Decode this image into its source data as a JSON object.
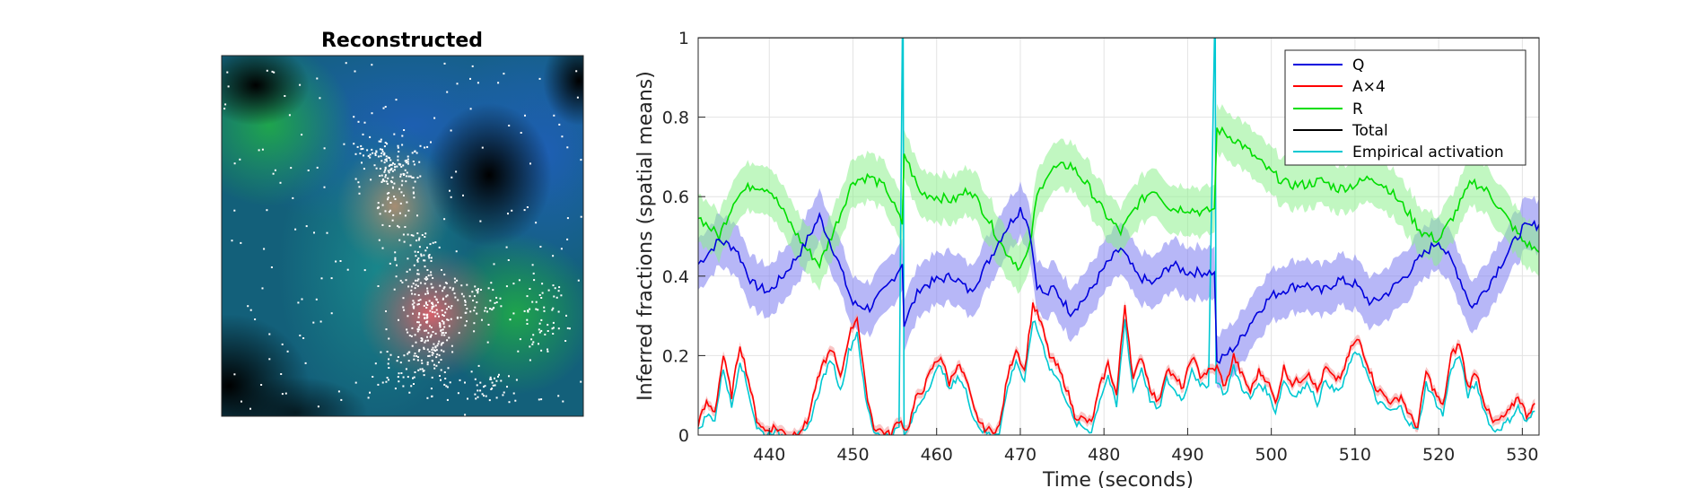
{
  "image_panel": {
    "title": "Reconstructed"
  },
  "chart_data": {
    "type": "line",
    "xlabel": "Time (seconds)",
    "ylabel": "Inferred fractions (spatial means)",
    "xlim": [
      431.5,
      532
    ],
    "ylim": [
      0,
      1
    ],
    "xticks": [
      440,
      450,
      460,
      470,
      480,
      490,
      500,
      510,
      520,
      530
    ],
    "yticks": [
      0,
      0.2,
      0.4,
      0.6,
      0.8,
      1
    ],
    "grid": true,
    "legend_position": "top-right",
    "series": [
      {
        "name": "Q",
        "color": "#0000dd",
        "band_color": "#7b7bf0",
        "x": [
          431.5,
          434,
          436,
          438,
          440,
          442,
          444,
          446,
          448,
          450,
          452,
          454,
          455.9,
          456.1,
          458,
          460,
          462,
          464,
          466,
          468,
          470,
          471,
          472,
          473,
          474,
          476,
          478,
          480,
          482,
          484,
          486,
          488,
          490,
          492,
          493.2,
          493.5,
          496,
          498,
          500,
          502,
          504,
          506,
          508,
          510,
          512,
          514,
          516,
          518,
          520,
          522,
          524,
          526,
          528,
          530,
          532
        ],
        "y": [
          0.43,
          0.49,
          0.47,
          0.38,
          0.36,
          0.41,
          0.47,
          0.55,
          0.45,
          0.33,
          0.32,
          0.37,
          0.43,
          0.28,
          0.37,
          0.39,
          0.4,
          0.36,
          0.43,
          0.51,
          0.57,
          0.53,
          0.38,
          0.35,
          0.37,
          0.31,
          0.35,
          0.42,
          0.47,
          0.4,
          0.38,
          0.43,
          0.41,
          0.41,
          0.41,
          0.18,
          0.23,
          0.3,
          0.35,
          0.37,
          0.38,
          0.36,
          0.39,
          0.38,
          0.33,
          0.36,
          0.4,
          0.45,
          0.49,
          0.42,
          0.32,
          0.38,
          0.45,
          0.52,
          0.53
        ]
      },
      {
        "name": "A×4",
        "color": "#ff0000",
        "x": [
          431.5,
          432.5,
          433.5,
          434.5,
          435.5,
          436.5,
          437.5,
          438.5,
          439.5,
          440.5,
          441.5,
          442.5,
          443.5,
          444.5,
          445.5,
          446.5,
          447.5,
          448.5,
          449.5,
          450.5,
          451.5,
          452.5,
          453.5,
          454.5,
          455.5,
          456.5,
          457.5,
          458.5,
          459.5,
          460.5,
          461.5,
          462.5,
          463.5,
          464.5,
          465.5,
          466.5,
          467.5,
          468.5,
          469.5,
          470.5,
          471.5,
          472.5,
          473.5,
          474.5,
          475.5,
          476.5,
          477.5,
          478.5,
          479.5,
          480.5,
          481.5,
          482.5,
          483.5,
          484.5,
          485.5,
          486.5,
          487.5,
          488.5,
          489.5,
          490.5,
          491.5,
          492.5,
          493.5,
          494.5,
          495.5,
          496.5,
          497.5,
          498.5,
          499.5,
          500.5,
          501.5,
          502.5,
          503.5,
          504.5,
          505.5,
          506.5,
          507.5,
          508.5,
          509.5,
          510.5,
          511.5,
          512.5,
          513.5,
          514.5,
          515.5,
          516.5,
          517.5,
          518.5,
          519.5,
          520.5,
          521.5,
          522.5,
          523.5,
          524.5,
          525.5,
          526.5,
          527.5,
          528.5,
          529.5,
          530.5,
          531.5
        ],
        "y": [
          0.03,
          0.08,
          0.06,
          0.2,
          0.1,
          0.23,
          0.14,
          0.04,
          0.01,
          0.02,
          0.01,
          0.0,
          0.01,
          0.03,
          0.12,
          0.18,
          0.22,
          0.14,
          0.25,
          0.3,
          0.12,
          0.02,
          0.01,
          0.0,
          0.04,
          0.01,
          0.09,
          0.12,
          0.17,
          0.2,
          0.13,
          0.18,
          0.14,
          0.06,
          0.02,
          0.01,
          0.02,
          0.15,
          0.22,
          0.16,
          0.33,
          0.28,
          0.2,
          0.17,
          0.12,
          0.05,
          0.04,
          0.03,
          0.12,
          0.18,
          0.1,
          0.33,
          0.14,
          0.2,
          0.12,
          0.08,
          0.17,
          0.14,
          0.12,
          0.2,
          0.15,
          0.16,
          0.17,
          0.12,
          0.2,
          0.15,
          0.11,
          0.16,
          0.14,
          0.08,
          0.17,
          0.13,
          0.14,
          0.16,
          0.11,
          0.17,
          0.14,
          0.15,
          0.22,
          0.24,
          0.18,
          0.12,
          0.1,
          0.08,
          0.1,
          0.05,
          0.02,
          0.16,
          0.11,
          0.07,
          0.2,
          0.23,
          0.12,
          0.16,
          0.08,
          0.03,
          0.04,
          0.06,
          0.1,
          0.05,
          0.08
        ]
      },
      {
        "name": "R",
        "color": "#00dd00",
        "band_color": "#8ef08e",
        "x": [
          431.5,
          434,
          436,
          438,
          440,
          442,
          444,
          446,
          448,
          450,
          452,
          454,
          455.9,
          456.1,
          458,
          460,
          462,
          464,
          466,
          468,
          470,
          471,
          472,
          473,
          474,
          476,
          478,
          480,
          482,
          484,
          486,
          488,
          490,
          492,
          493.2,
          493.5,
          496,
          498,
          500,
          502,
          504,
          506,
          508,
          510,
          512,
          514,
          516,
          518,
          520,
          522,
          524,
          526,
          528,
          530,
          532
        ],
        "y": [
          0.55,
          0.5,
          0.6,
          0.63,
          0.62,
          0.55,
          0.48,
          0.43,
          0.53,
          0.64,
          0.65,
          0.62,
          0.53,
          0.71,
          0.61,
          0.6,
          0.59,
          0.62,
          0.55,
          0.47,
          0.42,
          0.46,
          0.6,
          0.65,
          0.67,
          0.68,
          0.63,
          0.56,
          0.51,
          0.58,
          0.62,
          0.57,
          0.57,
          0.56,
          0.57,
          0.77,
          0.74,
          0.7,
          0.66,
          0.63,
          0.63,
          0.64,
          0.62,
          0.63,
          0.65,
          0.62,
          0.57,
          0.51,
          0.49,
          0.56,
          0.64,
          0.61,
          0.55,
          0.49,
          0.46
        ]
      },
      {
        "name": "Total",
        "color": "#000000",
        "x": [
          431.5,
          532
        ],
        "y": [
          1,
          1
        ]
      },
      {
        "name": "Empirical activation",
        "color": "#00c8d2",
        "x": [
          431.5,
          432.5,
          433.5,
          434.5,
          435.5,
          436.5,
          437.5,
          438.5,
          439.5,
          440.5,
          441.5,
          442.5,
          443.5,
          444.5,
          445.5,
          446.5,
          447.5,
          448.5,
          449.5,
          450.5,
          451.5,
          452.5,
          453.5,
          454.5,
          455.5,
          455.9,
          456.0,
          456.1,
          456.5,
          457.5,
          458.5,
          459.5,
          460.5,
          461.5,
          462.5,
          463.5,
          464.5,
          465.5,
          466.5,
          467.5,
          468.5,
          469.5,
          470.5,
          471.5,
          472.5,
          473.5,
          474.5,
          475.5,
          476.5,
          477.5,
          478.5,
          479.5,
          480.5,
          481.5,
          482.5,
          483.5,
          484.5,
          485.5,
          486.5,
          487.5,
          488.5,
          489.5,
          490.5,
          491.5,
          492.5,
          493.2,
          493.3,
          493.4,
          494.5,
          495.5,
          496.5,
          497.5,
          498.5,
          499.5,
          500.5,
          501.5,
          502.5,
          503.5,
          504.5,
          505.5,
          506.5,
          507.5,
          508.5,
          509.5,
          510.5,
          511.5,
          512.5,
          513.5,
          514.5,
          515.5,
          516.5,
          517.5,
          518.5,
          519.5,
          520.5,
          521.5,
          522.5,
          523.5,
          524.5,
          525.5,
          526.5,
          527.5,
          528.5,
          529.5,
          530.5,
          531.5
        ],
        "y": [
          0.01,
          0.05,
          0.04,
          0.17,
          0.07,
          0.19,
          0.11,
          0.02,
          0.0,
          0.01,
          0.0,
          0.0,
          0.0,
          0.01,
          0.08,
          0.15,
          0.19,
          0.11,
          0.21,
          0.26,
          0.09,
          0.01,
          0.0,
          0.0,
          0.02,
          1.0,
          1.0,
          0.0,
          0.01,
          0.06,
          0.1,
          0.14,
          0.18,
          0.11,
          0.15,
          0.11,
          0.04,
          0.01,
          0.0,
          0.01,
          0.12,
          0.19,
          0.13,
          0.29,
          0.24,
          0.17,
          0.14,
          0.09,
          0.03,
          0.02,
          0.01,
          0.09,
          0.15,
          0.07,
          0.29,
          0.11,
          0.17,
          0.09,
          0.06,
          0.14,
          0.11,
          0.09,
          0.17,
          0.12,
          0.13,
          1.0,
          1.0,
          0.14,
          0.1,
          0.17,
          0.12,
          0.09,
          0.13,
          0.11,
          0.06,
          0.14,
          0.1,
          0.11,
          0.13,
          0.08,
          0.14,
          0.11,
          0.12,
          0.19,
          0.21,
          0.15,
          0.09,
          0.07,
          0.06,
          0.07,
          0.03,
          0.01,
          0.13,
          0.09,
          0.05,
          0.17,
          0.2,
          0.1,
          0.13,
          0.06,
          0.01,
          0.02,
          0.04,
          0.07,
          0.03,
          0.06
        ]
      }
    ]
  }
}
